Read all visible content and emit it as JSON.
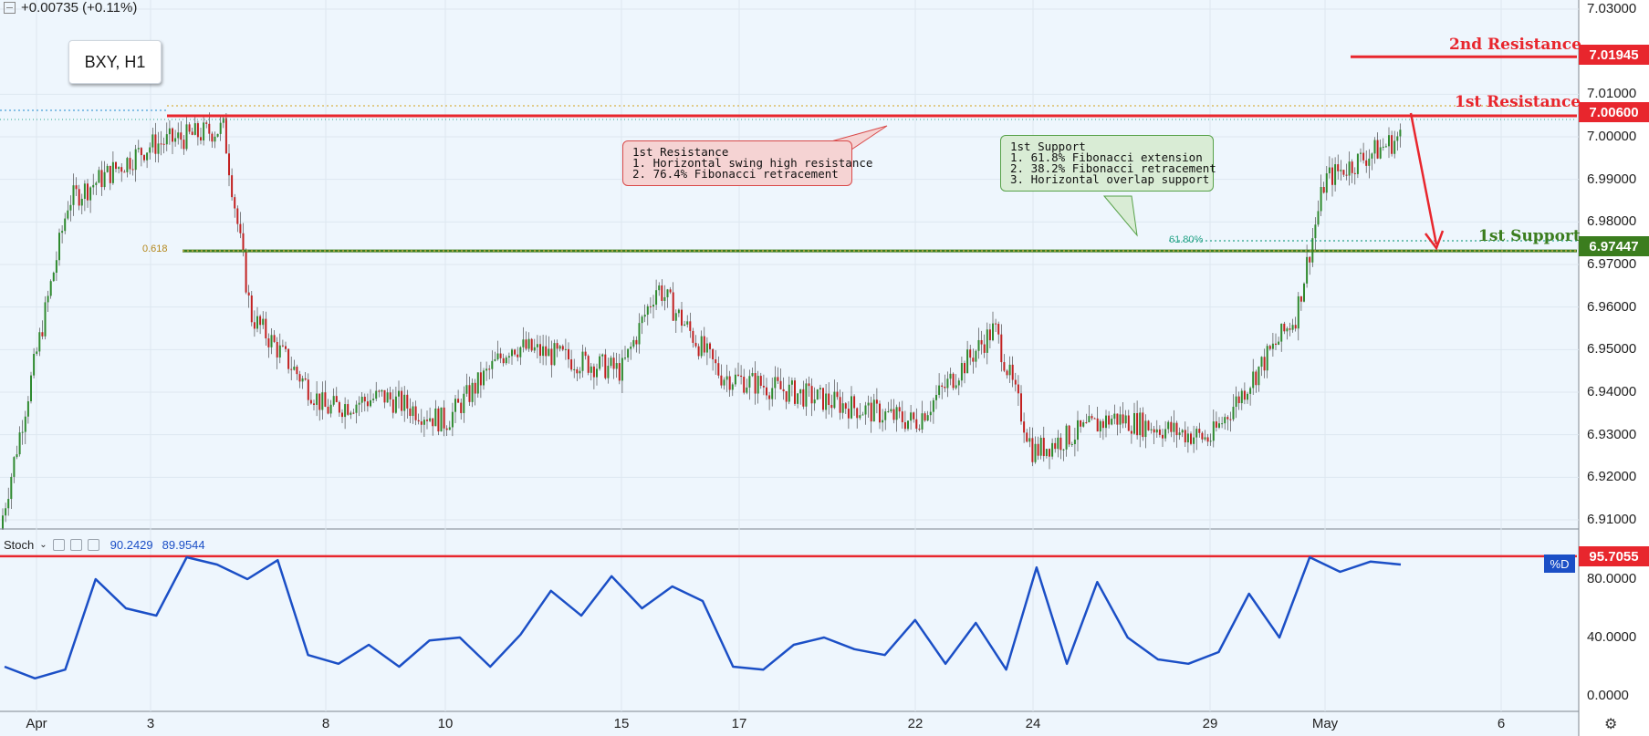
{
  "header": {
    "change": "+0.00735 (+0.11%)",
    "symbol": "BXY, H1"
  },
  "stoch": {
    "name": "Stoch",
    "k_value": "90.2429",
    "d_value": "89.9544",
    "d_tag": "%D",
    "level_tag": "95.7055",
    "axis": [
      "80.0000",
      "40.0000",
      "0.0000"
    ]
  },
  "price_axis": [
    "7.03000",
    "7.01000",
    "7.00000",
    "6.99000",
    "6.98000",
    "6.97000",
    "6.96000",
    "6.95000",
    "6.94000",
    "6.93000",
    "6.92000",
    "6.91000"
  ],
  "time_axis": [
    "Apr",
    "3",
    "8",
    "10",
    "15",
    "17",
    "22",
    "24",
    "29",
    "May",
    "6"
  ],
  "annotations": {
    "second_resistance": "2nd Resistance",
    "second_resistance_price": "7.01945",
    "first_resistance": "1st Resistance",
    "first_resistance_price": "7.00600",
    "first_support": "1st Support",
    "first_support_price": "6.97447",
    "fib_618": "0.618",
    "fib_6180": "61.80%"
  },
  "callouts": {
    "resistance": "1st Resistance\n1. Horizontal swing high resistance\n2. 76.4% Fibonacci retracement",
    "support": "1st Support\n1. 61.8% Fibonacci extension\n2. 38.2% Fibonacci retracement\n3. Horizontal overlap support"
  },
  "colors": {
    "background": "#eef6fd",
    "resistance": "#e8262d",
    "support": "#3b7d1e",
    "stoch_line": "#1b4fc6",
    "bull_candle": "#2f8a2f",
    "bear_candle": "#c22121"
  },
  "chart_data": {
    "type": "candlestick",
    "symbol": "BXY",
    "timeframe": "H1",
    "ylim": [
      6.905,
      7.033
    ],
    "x": [
      "Apr",
      "3",
      "8",
      "10",
      "15",
      "17",
      "22",
      "24",
      "29",
      "May",
      "6"
    ],
    "close_path": [
      {
        "x": "Apr",
        "y": 6.908
      },
      {
        "x": "2",
        "y": 6.985
      },
      {
        "x": "3",
        "y": 6.998
      },
      {
        "x": "4",
        "y": 7.002
      },
      {
        "x": "5",
        "y": 6.958
      },
      {
        "x": "8",
        "y": 6.936
      },
      {
        "x": "9",
        "y": 6.939
      },
      {
        "x": "10",
        "y": 6.933
      },
      {
        "x": "12",
        "y": 6.951
      },
      {
        "x": "15",
        "y": 6.945
      },
      {
        "x": "16",
        "y": 6.965
      },
      {
        "x": "17",
        "y": 6.944
      },
      {
        "x": "22",
        "y": 6.933
      },
      {
        "x": "23",
        "y": 6.955
      },
      {
        "x": "24",
        "y": 6.926
      },
      {
        "x": "26",
        "y": 6.934
      },
      {
        "x": "29",
        "y": 6.929
      },
      {
        "x": "30",
        "y": 6.958
      },
      {
        "x": "May",
        "y": 6.99
      },
      {
        "x": "2",
        "y": 7.0
      }
    ],
    "levels": [
      {
        "name": "2nd Resistance",
        "y": 7.01945
      },
      {
        "name": "1st Resistance",
        "y": 7.006
      },
      {
        "name": "1st Support",
        "y": 6.97447
      }
    ],
    "stochastic": {
      "k": 90.2429,
      "d": 89.9544,
      "level": 95.7055,
      "ylim": [
        -5,
        100
      ],
      "path": [
        20,
        12,
        18,
        80,
        60,
        55,
        95,
        90,
        80,
        93,
        28,
        22,
        35,
        20,
        38,
        40,
        20,
        42,
        72,
        55,
        82,
        60,
        75,
        65,
        20,
        18,
        35,
        40,
        32,
        28,
        52,
        22,
        50,
        18,
        88,
        22,
        78,
        40,
        25,
        22,
        30,
        70,
        40,
        95,
        85,
        92,
        90
      ]
    }
  }
}
